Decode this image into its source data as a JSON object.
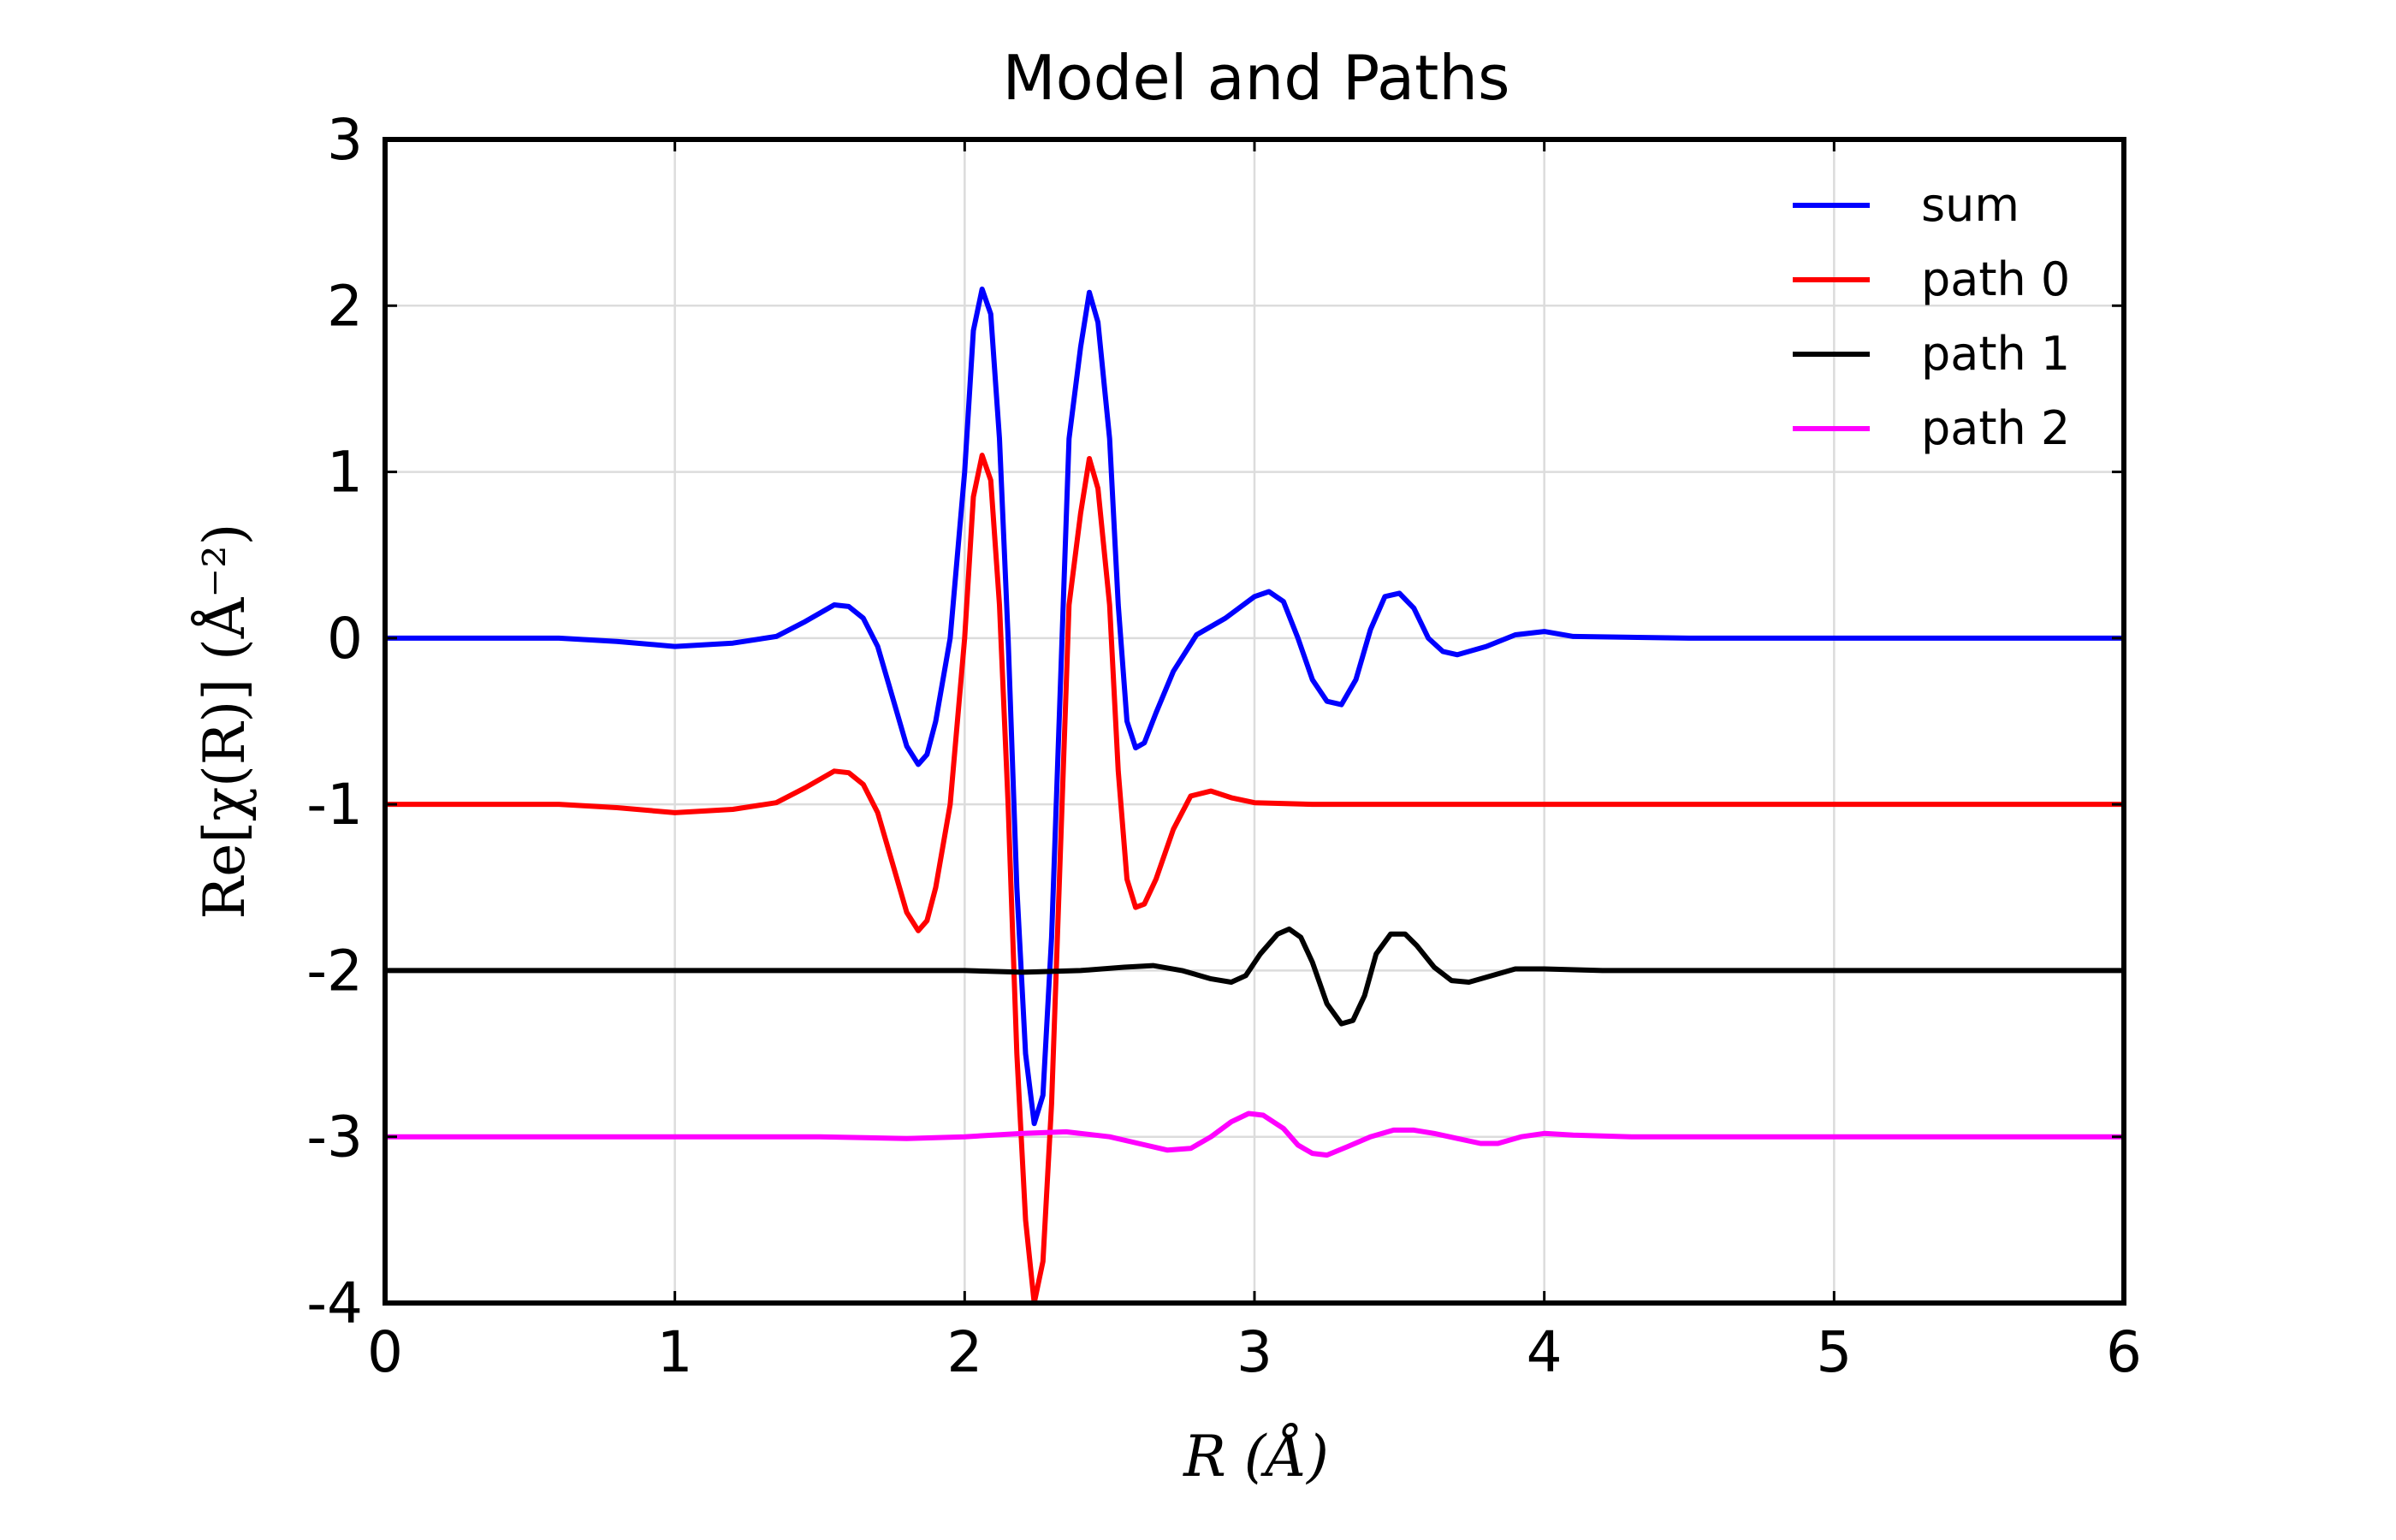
{
  "chart_data": {
    "type": "line",
    "title": "Model and Paths",
    "xlabel": "R (Å)",
    "ylabel": "Re[χ(R)] (Å⁻²)",
    "xlim": [
      0,
      6
    ],
    "ylim": [
      -4,
      3
    ],
    "xticks": [
      "0",
      "1",
      "2",
      "3",
      "4",
      "5",
      "6"
    ],
    "yticks": [
      "3",
      "2",
      "1",
      "0",
      "-1",
      "-2",
      "-3",
      "-4"
    ],
    "grid": true,
    "legend_position": "top-right",
    "series": [
      {
        "name": "sum",
        "color": "#0000ff",
        "points": [
          [
            0,
            0
          ],
          [
            0.6,
            0
          ],
          [
            0.8,
            -0.02
          ],
          [
            1.0,
            -0.05
          ],
          [
            1.2,
            -0.03
          ],
          [
            1.35,
            0.01
          ],
          [
            1.45,
            0.1
          ],
          [
            1.55,
            0.2
          ],
          [
            1.6,
            0.19
          ],
          [
            1.65,
            0.12
          ],
          [
            1.7,
            -0.05
          ],
          [
            1.75,
            -0.35
          ],
          [
            1.8,
            -0.65
          ],
          [
            1.84,
            -0.76
          ],
          [
            1.87,
            -0.7
          ],
          [
            1.9,
            -0.5
          ],
          [
            1.95,
            0.0
          ],
          [
            2.0,
            1.0
          ],
          [
            2.03,
            1.85
          ],
          [
            2.06,
            2.1
          ],
          [
            2.09,
            1.95
          ],
          [
            2.12,
            1.2
          ],
          [
            2.15,
            0.0
          ],
          [
            2.18,
            -1.5
          ],
          [
            2.21,
            -2.5
          ],
          [
            2.24,
            -2.92
          ],
          [
            2.27,
            -2.75
          ],
          [
            2.3,
            -1.8
          ],
          [
            2.33,
            -0.3
          ],
          [
            2.36,
            1.2
          ],
          [
            2.4,
            1.75
          ],
          [
            2.43,
            2.08
          ],
          [
            2.46,
            1.9
          ],
          [
            2.5,
            1.2
          ],
          [
            2.53,
            0.2
          ],
          [
            2.56,
            -0.5
          ],
          [
            2.59,
            -0.66
          ],
          [
            2.62,
            -0.63
          ],
          [
            2.66,
            -0.45
          ],
          [
            2.72,
            -0.2
          ],
          [
            2.8,
            0.02
          ],
          [
            2.9,
            0.12
          ],
          [
            3.0,
            0.25
          ],
          [
            3.05,
            0.28
          ],
          [
            3.1,
            0.22
          ],
          [
            3.15,
            0.0
          ],
          [
            3.2,
            -0.25
          ],
          [
            3.25,
            -0.38
          ],
          [
            3.3,
            -0.4
          ],
          [
            3.35,
            -0.25
          ],
          [
            3.4,
            0.05
          ],
          [
            3.45,
            0.25
          ],
          [
            3.5,
            0.27
          ],
          [
            3.55,
            0.18
          ],
          [
            3.6,
            0.0
          ],
          [
            3.65,
            -0.08
          ],
          [
            3.7,
            -0.1
          ],
          [
            3.8,
            -0.05
          ],
          [
            3.9,
            0.02
          ],
          [
            4.0,
            0.04
          ],
          [
            4.1,
            0.01
          ],
          [
            4.5,
            0
          ],
          [
            6.0,
            0
          ]
        ]
      },
      {
        "name": "path 0",
        "color": "#ff0000",
        "points": [
          [
            0,
            -1
          ],
          [
            0.6,
            -1
          ],
          [
            0.8,
            -1.02
          ],
          [
            1.0,
            -1.05
          ],
          [
            1.2,
            -1.03
          ],
          [
            1.35,
            -0.99
          ],
          [
            1.45,
            -0.9
          ],
          [
            1.55,
            -0.8
          ],
          [
            1.6,
            -0.81
          ],
          [
            1.65,
            -0.88
          ],
          [
            1.7,
            -1.05
          ],
          [
            1.75,
            -1.35
          ],
          [
            1.8,
            -1.65
          ],
          [
            1.84,
            -1.76
          ],
          [
            1.87,
            -1.7
          ],
          [
            1.9,
            -1.5
          ],
          [
            1.95,
            -1.0
          ],
          [
            2.0,
            0.0
          ],
          [
            2.03,
            0.85
          ],
          [
            2.06,
            1.1
          ],
          [
            2.09,
            0.95
          ],
          [
            2.12,
            0.2
          ],
          [
            2.15,
            -1.0
          ],
          [
            2.18,
            -2.5
          ],
          [
            2.21,
            -3.5
          ],
          [
            2.24,
            -4.0
          ],
          [
            2.27,
            -3.75
          ],
          [
            2.3,
            -2.8
          ],
          [
            2.33,
            -1.3
          ],
          [
            2.36,
            0.2
          ],
          [
            2.4,
            0.75
          ],
          [
            2.43,
            1.08
          ],
          [
            2.46,
            0.9
          ],
          [
            2.5,
            0.2
          ],
          [
            2.53,
            -0.8
          ],
          [
            2.56,
            -1.45
          ],
          [
            2.59,
            -1.62
          ],
          [
            2.62,
            -1.6
          ],
          [
            2.66,
            -1.45
          ],
          [
            2.72,
            -1.15
          ],
          [
            2.78,
            -0.95
          ],
          [
            2.85,
            -0.92
          ],
          [
            2.92,
            -0.96
          ],
          [
            3.0,
            -0.99
          ],
          [
            3.2,
            -1.0
          ],
          [
            6.0,
            -1.0
          ]
        ]
      },
      {
        "name": "path 1",
        "color": "#000000",
        "points": [
          [
            0,
            -2
          ],
          [
            1.7,
            -2
          ],
          [
            2.0,
            -2.0
          ],
          [
            2.2,
            -2.01
          ],
          [
            2.4,
            -2.0
          ],
          [
            2.55,
            -1.98
          ],
          [
            2.65,
            -1.97
          ],
          [
            2.75,
            -2.0
          ],
          [
            2.85,
            -2.05
          ],
          [
            2.92,
            -2.07
          ],
          [
            2.97,
            -2.03
          ],
          [
            3.02,
            -1.9
          ],
          [
            3.08,
            -1.78
          ],
          [
            3.12,
            -1.75
          ],
          [
            3.16,
            -1.8
          ],
          [
            3.2,
            -1.95
          ],
          [
            3.25,
            -2.2
          ],
          [
            3.3,
            -2.32
          ],
          [
            3.34,
            -2.3
          ],
          [
            3.38,
            -2.15
          ],
          [
            3.42,
            -1.9
          ],
          [
            3.47,
            -1.78
          ],
          [
            3.52,
            -1.78
          ],
          [
            3.56,
            -1.85
          ],
          [
            3.62,
            -1.98
          ],
          [
            3.68,
            -2.06
          ],
          [
            3.74,
            -2.07
          ],
          [
            3.82,
            -2.03
          ],
          [
            3.9,
            -1.99
          ],
          [
            4.0,
            -1.99
          ],
          [
            4.2,
            -2.0
          ],
          [
            6.0,
            -2.0
          ]
        ]
      },
      {
        "name": "path 2",
        "color": "#ff00ff",
        "points": [
          [
            0,
            -3
          ],
          [
            1.5,
            -3.0
          ],
          [
            1.8,
            -3.01
          ],
          [
            2.0,
            -3.0
          ],
          [
            2.2,
            -2.98
          ],
          [
            2.35,
            -2.97
          ],
          [
            2.5,
            -3.0
          ],
          [
            2.6,
            -3.04
          ],
          [
            2.7,
            -3.08
          ],
          [
            2.78,
            -3.07
          ],
          [
            2.85,
            -3.0
          ],
          [
            2.92,
            -2.91
          ],
          [
            2.98,
            -2.86
          ],
          [
            3.03,
            -2.87
          ],
          [
            3.1,
            -2.95
          ],
          [
            3.15,
            -3.05
          ],
          [
            3.2,
            -3.1
          ],
          [
            3.25,
            -3.11
          ],
          [
            3.32,
            -3.06
          ],
          [
            3.4,
            -3.0
          ],
          [
            3.48,
            -2.96
          ],
          [
            3.55,
            -2.96
          ],
          [
            3.62,
            -2.98
          ],
          [
            3.7,
            -3.01
          ],
          [
            3.78,
            -3.04
          ],
          [
            3.84,
            -3.04
          ],
          [
            3.92,
            -3.0
          ],
          [
            4.0,
            -2.98
          ],
          [
            4.1,
            -2.99
          ],
          [
            4.3,
            -3.0
          ],
          [
            6.0,
            -3.0
          ]
        ]
      }
    ]
  }
}
